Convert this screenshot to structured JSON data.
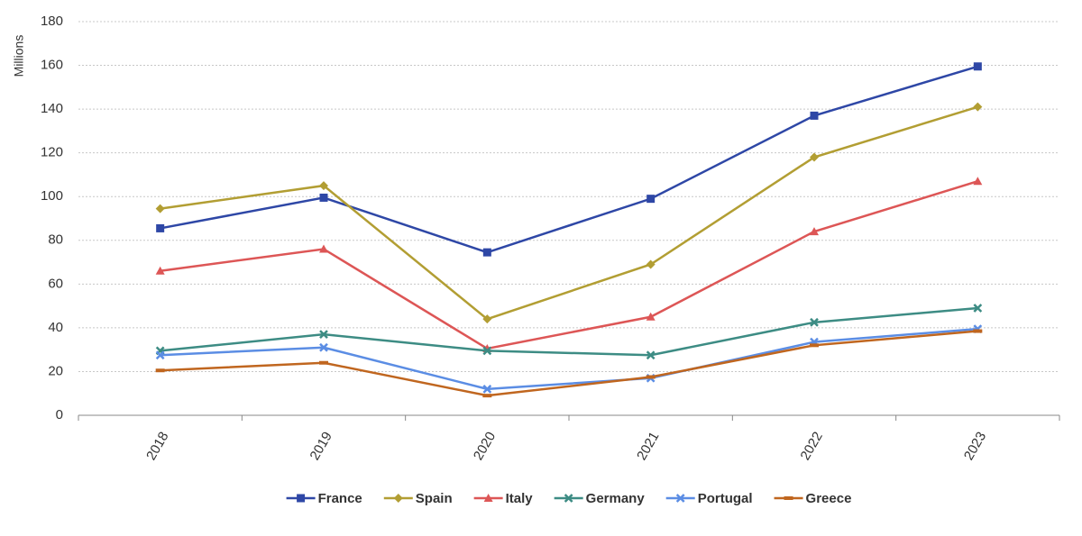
{
  "chart_data": {
    "type": "line",
    "y_label": "Millions",
    "categories": [
      "2018",
      "2019",
      "2020",
      "2021",
      "2022",
      "2023"
    ],
    "series": [
      {
        "name": "France",
        "color": "#2e47a6",
        "marker": "square",
        "values": [
          85.5,
          99.5,
          74.5,
          99,
          137,
          159.5
        ]
      },
      {
        "name": "Spain",
        "color": "#b29e33",
        "marker": "diamond",
        "values": [
          94.5,
          105,
          44,
          69,
          118,
          141
        ]
      },
      {
        "name": "Italy",
        "color": "#dd5656",
        "marker": "triangle",
        "values": [
          66,
          76,
          30.5,
          45,
          84,
          107
        ]
      },
      {
        "name": "Germany",
        "color": "#3d8c84",
        "marker": "x",
        "values": [
          29.5,
          37,
          29.5,
          27.5,
          42.5,
          49
        ]
      },
      {
        "name": "Portugal",
        "color": "#5b8de4",
        "marker": "x",
        "values": [
          27.5,
          31,
          12,
          17,
          33.5,
          39.5
        ]
      },
      {
        "name": "Greece",
        "color": "#c0661f",
        "marker": "dash",
        "values": [
          20.5,
          24,
          9,
          17.5,
          32,
          38.5
        ]
      }
    ],
    "ylim": [
      0,
      180
    ],
    "yticks": [
      0,
      20,
      40,
      60,
      80,
      100,
      120,
      140,
      160,
      180
    ],
    "grid": true,
    "legend": "bottom"
  }
}
